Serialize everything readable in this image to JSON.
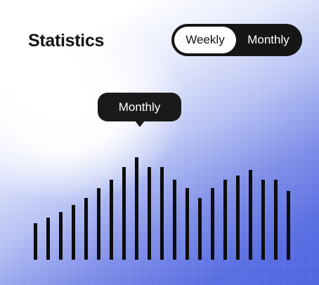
{
  "header": {
    "title": "Statistics"
  },
  "period_toggle": {
    "options": [
      "Weekly",
      "Monthly"
    ],
    "selected": "Weekly"
  },
  "tooltip": {
    "label": "Monthly"
  },
  "colors": {
    "bar": "#0d0d0d",
    "toggle_bg": "#161616",
    "gradient_end": "#5066e0"
  },
  "chart_data": {
    "type": "bar",
    "values": [
      52,
      60,
      68,
      78,
      88,
      102,
      114,
      132,
      146,
      132,
      132,
      114,
      102,
      88,
      102,
      114,
      120,
      128,
      114,
      114,
      98
    ]
  }
}
